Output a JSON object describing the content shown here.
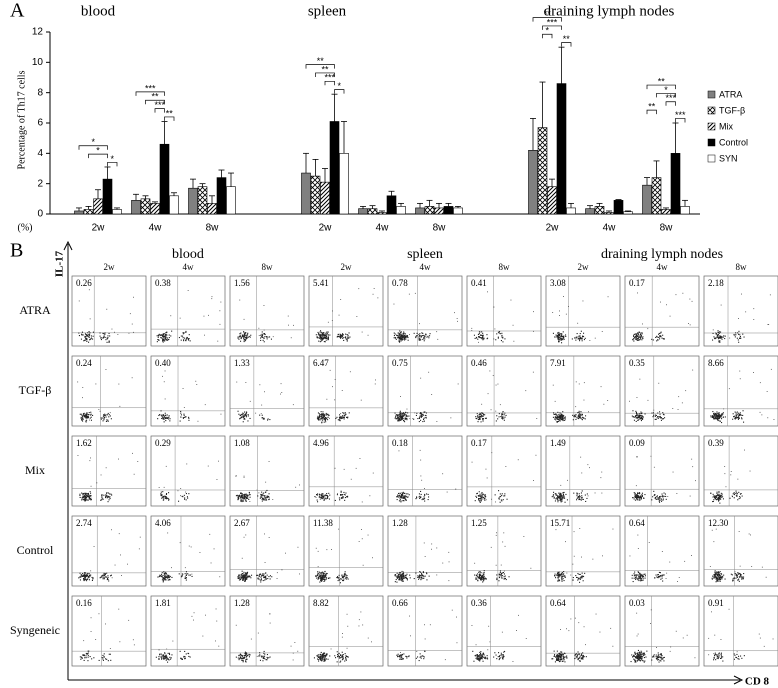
{
  "chart_data": {
    "type": "bar",
    "panel_label": "A",
    "groups": [
      "blood",
      "spleen",
      "draining lymph nodes"
    ],
    "categories": [
      "2w",
      "4w",
      "8w",
      "2w",
      "4w",
      "8w",
      "2w",
      "4w",
      "8w"
    ],
    "y_label": "Percentage of Th17 cells",
    "unit_label": "(%)",
    "ylim": [
      0,
      12
    ],
    "yticks": [
      0,
      2,
      4,
      6,
      8,
      10,
      12
    ],
    "series": [
      {
        "name": "ATRA",
        "color": "#808080",
        "hatch": "none",
        "values": [
          0.2,
          0.9,
          1.7,
          2.7,
          0.35,
          0.4,
          4.2,
          0.35,
          1.9
        ],
        "errors": [
          0.2,
          0.4,
          0.6,
          1.3,
          0.15,
          0.3,
          2.1,
          0.2,
          0.5
        ]
      },
      {
        "name": "TGF-β",
        "color": "#ffffff",
        "hatch": "cross",
        "values": [
          0.3,
          1.0,
          1.8,
          2.5,
          0.35,
          0.5,
          5.7,
          0.5,
          2.4
        ],
        "errors": [
          0.2,
          0.2,
          0.2,
          1.1,
          0.2,
          0.4,
          3.0,
          0.2,
          1.1
        ]
      },
      {
        "name": "Mix",
        "color": "#ffffff",
        "hatch": "diagonal",
        "values": [
          1.0,
          0.7,
          0.7,
          2.1,
          0.1,
          0.4,
          1.8,
          0.1,
          0.3
        ],
        "errors": [
          0.6,
          0.1,
          0.5,
          0.9,
          0.1,
          0.3,
          0.5,
          0.1,
          0.1
        ]
      },
      {
        "name": "Control",
        "color": "#000000",
        "hatch": "none",
        "values": [
          2.3,
          4.6,
          2.4,
          6.1,
          1.2,
          0.5,
          8.6,
          0.9,
          4.0
        ],
        "errors": [
          0.8,
          1.5,
          0.5,
          1.8,
          0.3,
          0.2,
          2.4,
          0.05,
          2.0
        ]
      },
      {
        "name": "SYN",
        "color": "#ffffff",
        "hatch": "none",
        "values": [
          0.3,
          1.2,
          1.8,
          4.0,
          0.5,
          0.4,
          0.4,
          0.15,
          0.5
        ],
        "errors": [
          0.1,
          0.2,
          0.9,
          2.1,
          0.2,
          0.1,
          0.3,
          0.05,
          0.4
        ]
      }
    ],
    "significance": [
      {
        "category": 0,
        "from": 0,
        "to": 3,
        "label": "*"
      },
      {
        "category": 0,
        "from": 1,
        "to": 3,
        "label": "*"
      },
      {
        "category": 0,
        "from": 3,
        "to": 4,
        "label": "*"
      },
      {
        "category": 1,
        "from": 0,
        "to": 3,
        "label": "***"
      },
      {
        "category": 1,
        "from": 1,
        "to": 3,
        "label": "**"
      },
      {
        "category": 1,
        "from": 2,
        "to": 3,
        "label": "***"
      },
      {
        "category": 1,
        "from": 3,
        "to": 4,
        "label": "**"
      },
      {
        "category": 3,
        "from": 0,
        "to": 3,
        "label": "**"
      },
      {
        "category": 3,
        "from": 1,
        "to": 3,
        "label": "**"
      },
      {
        "category": 3,
        "from": 2,
        "to": 3,
        "label": "***"
      },
      {
        "category": 3,
        "from": 3,
        "to": 4,
        "label": "*"
      },
      {
        "category": 6,
        "from": 0,
        "to": 3,
        "label": "**"
      },
      {
        "category": 6,
        "from": 1,
        "to": 3,
        "label": "***"
      },
      {
        "category": 6,
        "from": 1,
        "to": 2,
        "label": "*"
      },
      {
        "category": 6,
        "from": 3,
        "to": 4,
        "label": "**"
      },
      {
        "category": 8,
        "from": 0,
        "to": 3,
        "label": "**"
      },
      {
        "category": 8,
        "from": 1,
        "to": 3,
        "label": "*"
      },
      {
        "category": 8,
        "from": 2,
        "to": 3,
        "label": "***"
      },
      {
        "category": 8,
        "from": 0,
        "to": 1,
        "label": "**"
      },
      {
        "category": 8,
        "from": 3,
        "to": 4,
        "label": "***"
      }
    ]
  },
  "panel_b": {
    "label": "B",
    "y_axis": "IL-17",
    "x_axis": "CD 8",
    "groups": [
      "blood",
      "spleen",
      "draining lymph nodes"
    ],
    "columns": [
      "2w",
      "4w",
      "8w",
      "2w",
      "4w",
      "8w",
      "2w",
      "4w",
      "8w"
    ],
    "rows": [
      {
        "label": "ATRA",
        "values": [
          "0.26",
          "0.38",
          "1.56",
          "5.41",
          "0.78",
          "0.41",
          "3.08",
          "0.17",
          "2.18"
        ]
      },
      {
        "label": "TGF-β",
        "values": [
          "0.24",
          "0.40",
          "1.33",
          "6.47",
          "0.75",
          "0.46",
          "7.91",
          "0.35",
          "8.66"
        ]
      },
      {
        "label": "Mix",
        "values": [
          "1.62",
          "0.29",
          "1.08",
          "4.96",
          "0.18",
          "0.17",
          "1.49",
          "0.09",
          "0.39"
        ]
      },
      {
        "label": "Control",
        "values": [
          "2.74",
          "4.06",
          "2.67",
          "11.38",
          "1.28",
          "1.25",
          "15.71",
          "0.64",
          "12.30"
        ]
      },
      {
        "label": "Syngeneic",
        "values": [
          "0.16",
          "1.81",
          "1.28",
          "8.82",
          "0.66",
          "0.36",
          "0.64",
          "0.03",
          "0.91"
        ]
      }
    ]
  }
}
